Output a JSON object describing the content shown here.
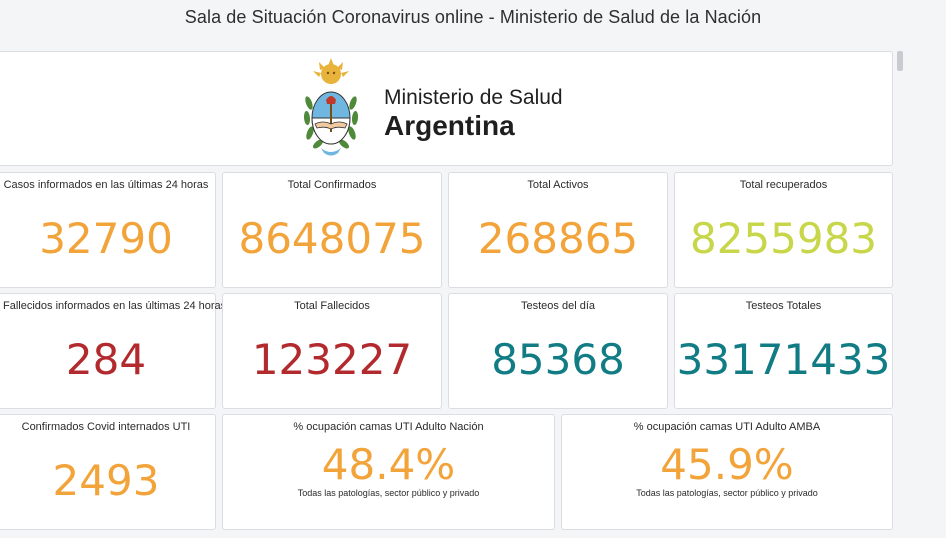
{
  "page": {
    "title": "Sala de Situación Coronavirus online - Ministerio de Salud de la Nación"
  },
  "header_logo": {
    "line1": "Ministerio de Salud",
    "line2": "Argentina",
    "seal_icon": "argentina-coat-of-arms-icon"
  },
  "cards": {
    "casos_24h": {
      "label": "Casos informados en las últimas 24 horas",
      "value": "32790",
      "color": "#f2a43a"
    },
    "total_confirmados": {
      "label": "Total Confirmados",
      "value": "8648075",
      "color": "#f2a43a"
    },
    "total_activos": {
      "label": "Total Activos",
      "value": "268865",
      "color": "#f2a43a"
    },
    "total_recuperados": {
      "label": "Total recuperados",
      "value": "8255983",
      "color": "#c8d64a"
    },
    "fallecidos_24h": {
      "label": "Fallecidos informados en las últimas 24 horas",
      "value": "284",
      "color": "#b22a2e"
    },
    "total_fallecidos": {
      "label": "Total Fallecidos",
      "value": "123227",
      "color": "#b22a2e"
    },
    "testeos_dia": {
      "label": "Testeos del día",
      "value": "85368",
      "color": "#117c84"
    },
    "testeos_totales": {
      "label": "Testeos Totales",
      "value": "33171433",
      "color": "#117c84"
    },
    "internados_uti": {
      "label": "Confirmados Covid internados UTI",
      "value": "2493",
      "color": "#f2a43a"
    },
    "ocupacion_nacion": {
      "label": "% ocupación camas UTI Adulto Nación",
      "value": "48.4%",
      "sub": "Todas las patologías, sector público y privado",
      "color": "#f2a43a"
    },
    "ocupacion_amba": {
      "label": "% ocupación camas UTI Adulto AMBA",
      "value": "45.9%",
      "sub": "Todas las patologías, sector público y privado",
      "color": "#f2a43a"
    }
  }
}
